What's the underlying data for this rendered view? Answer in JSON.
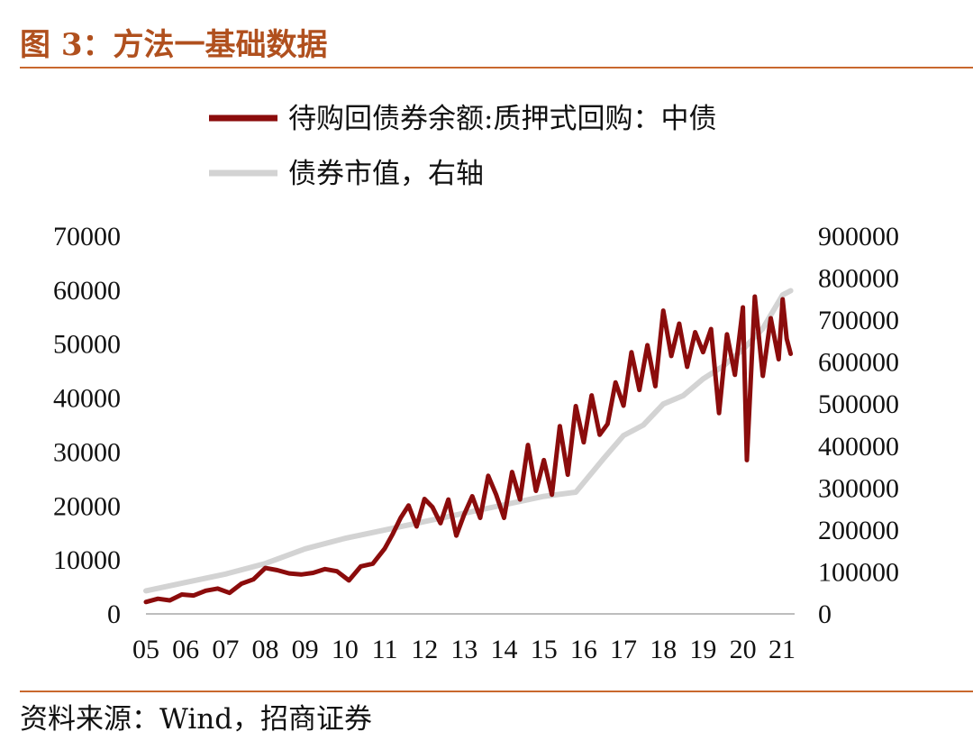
{
  "header": {
    "title": "图 3：方法一基础数据"
  },
  "footer": {
    "source": "资料来源：Wind，招商证券"
  },
  "colors": {
    "accent": "#c9682e",
    "title": "#b0501e",
    "series1": "#8b0c0c",
    "series2": "#d3d3d3"
  },
  "chart_data": {
    "type": "line",
    "legend_position": "top-center",
    "grid": false,
    "x_tick_labels": [
      "05",
      "06",
      "07",
      "08",
      "09",
      "10",
      "11",
      "12",
      "13",
      "14",
      "15",
      "16",
      "17",
      "18",
      "19",
      "20",
      "21"
    ],
    "xlim": [
      2005.0,
      2021.3
    ],
    "y_left": {
      "ylim": [
        0,
        70000
      ],
      "ticks": [
        "0",
        "10000",
        "20000",
        "30000",
        "40000",
        "50000",
        "60000",
        "70000"
      ]
    },
    "y_right": {
      "ylim": [
        0,
        900000
      ],
      "ticks": [
        "0",
        "100000",
        "200000",
        "300000",
        "400000",
        "500000",
        "600000",
        "700000",
        "800000",
        "900000"
      ]
    },
    "series": [
      {
        "name": "待购回债券余额:质押式回购：中债",
        "axis": "left",
        "x": [
          2005.0,
          2005.3,
          2005.6,
          2005.9,
          2006.2,
          2006.5,
          2006.8,
          2007.1,
          2007.4,
          2007.7,
          2008.0,
          2008.3,
          2008.6,
          2008.9,
          2009.2,
          2009.5,
          2009.8,
          2010.1,
          2010.4,
          2010.7,
          2011.0,
          2011.2,
          2011.4,
          2011.6,
          2011.8,
          2012.0,
          2012.2,
          2012.4,
          2012.6,
          2012.8,
          2013.0,
          2013.2,
          2013.4,
          2013.6,
          2013.8,
          2014.0,
          2014.2,
          2014.4,
          2014.6,
          2014.8,
          2015.0,
          2015.2,
          2015.4,
          2015.6,
          2015.8,
          2016.0,
          2016.2,
          2016.4,
          2016.6,
          2016.8,
          2017.0,
          2017.2,
          2017.4,
          2017.6,
          2017.8,
          2018.0,
          2018.2,
          2018.4,
          2018.6,
          2018.8,
          2019.0,
          2019.2,
          2019.4,
          2019.6,
          2019.8,
          2020.0,
          2020.1,
          2020.3,
          2020.5,
          2020.7,
          2020.9,
          2021.0,
          2021.1,
          2021.2
        ],
        "values": [
          2200,
          2800,
          2500,
          3600,
          3400,
          4300,
          4700,
          3900,
          5600,
          6400,
          8500,
          8100,
          7500,
          7300,
          7600,
          8300,
          7900,
          6200,
          8800,
          9300,
          12100,
          14800,
          17800,
          20100,
          16200,
          21300,
          19800,
          16800,
          21200,
          14500,
          18500,
          21800,
          17800,
          25600,
          22100,
          17800,
          26300,
          21200,
          31300,
          22800,
          28500,
          22100,
          34800,
          25800,
          38500,
          31800,
          40500,
          33200,
          35200,
          42900,
          38600,
          48500,
          41500,
          49800,
          42200,
          56200,
          47800,
          53800,
          45800,
          52200,
          48500,
          52800,
          37200,
          51800,
          44300,
          56800,
          28500,
          58800,
          44100,
          54800,
          47200,
          58300,
          51000,
          48200
        ]
      },
      {
        "name": "债券市值，右轴",
        "axis": "right",
        "x": [
          2005.0,
          2006.0,
          2007.0,
          2008.0,
          2009.0,
          2010.0,
          2011.0,
          2012.0,
          2013.0,
          2014.0,
          2015.0,
          2015.8,
          2016.5,
          2017.0,
          2017.5,
          2018.0,
          2018.5,
          2019.0,
          2019.5,
          2020.0,
          2020.5,
          2021.0,
          2021.2
        ],
        "values": [
          55000,
          75000,
          95000,
          120000,
          155000,
          180000,
          200000,
          220000,
          240000,
          260000,
          280000,
          290000,
          370000,
          425000,
          450000,
          500000,
          520000,
          560000,
          590000,
          630000,
          680000,
          760000,
          770000
        ]
      }
    ]
  }
}
